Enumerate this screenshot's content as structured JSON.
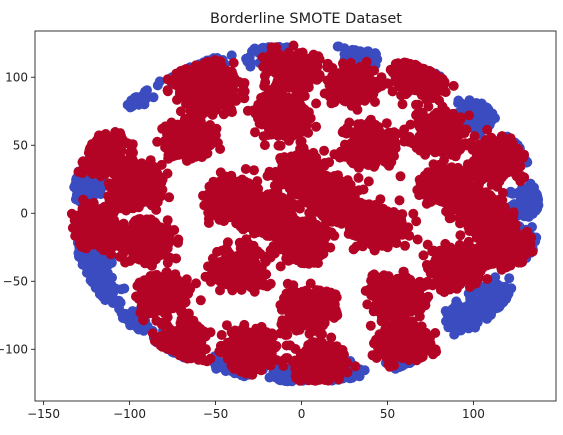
{
  "chart_data": {
    "type": "scatter",
    "title": "Borderline SMOTE Dataset",
    "xlabel": "",
    "ylabel": "",
    "xlim": [
      -155,
      148
    ],
    "ylim": [
      -138,
      134
    ],
    "xticks": [
      -150,
      -100,
      -50,
      0,
      50,
      100
    ],
    "yticks": [
      -100,
      -50,
      0,
      50,
      100
    ],
    "grid": false,
    "legend": "none",
    "cloud": {
      "shape": "ellipse",
      "center": [
        0,
        0
      ],
      "x_range": [
        -134,
        138
      ],
      "y_range": [
        -124,
        124
      ]
    },
    "series": [
      {
        "color": "#3b4cc0",
        "class": 0,
        "clusters": [
          [
            -128,
            20
          ],
          [
            -122,
            -36
          ],
          [
            -100,
            88
          ],
          [
            -78,
            107
          ],
          [
            -55,
            117
          ],
          [
            -20,
            122
          ],
          [
            35,
            120
          ],
          [
            85,
            110
          ],
          [
            102,
            72
          ],
          [
            125,
            45
          ],
          [
            133,
            8
          ],
          [
            127,
            -22
          ],
          [
            112,
            -62
          ],
          [
            95,
            -75
          ],
          [
            62,
            -112
          ],
          [
            25,
            -120
          ],
          [
            -8,
            -124
          ],
          [
            -42,
            -118
          ],
          [
            -82,
            -100
          ],
          [
            -100,
            -82
          ],
          [
            -118,
            -62
          ]
        ]
      },
      {
        "color": "#b40426",
        "class": 1,
        "clusters": [
          [
            -95,
            20
          ],
          [
            -90,
            -20
          ],
          [
            -80,
            -60
          ],
          [
            -65,
            55
          ],
          [
            -50,
            90
          ],
          [
            -40,
            10
          ],
          [
            -35,
            -40
          ],
          [
            -30,
            -100
          ],
          [
            -10,
            70
          ],
          [
            0,
            30
          ],
          [
            0,
            -20
          ],
          [
            5,
            -70
          ],
          [
            10,
            -110
          ],
          [
            30,
            95
          ],
          [
            40,
            50
          ],
          [
            45,
            -10
          ],
          [
            55,
            -60
          ],
          [
            60,
            -95
          ],
          [
            80,
            60
          ],
          [
            85,
            20
          ],
          [
            90,
            -40
          ],
          [
            105,
            0
          ],
          [
            115,
            40
          ],
          [
            118,
            -25
          ],
          [
            -115,
            45
          ],
          [
            -120,
            -10
          ],
          [
            -70,
            -95
          ],
          [
            -60,
            100
          ],
          [
            70,
            100
          ],
          [
            20,
            10
          ],
          [
            -20,
            0
          ],
          [
            -5,
            105
          ]
        ]
      }
    ]
  }
}
